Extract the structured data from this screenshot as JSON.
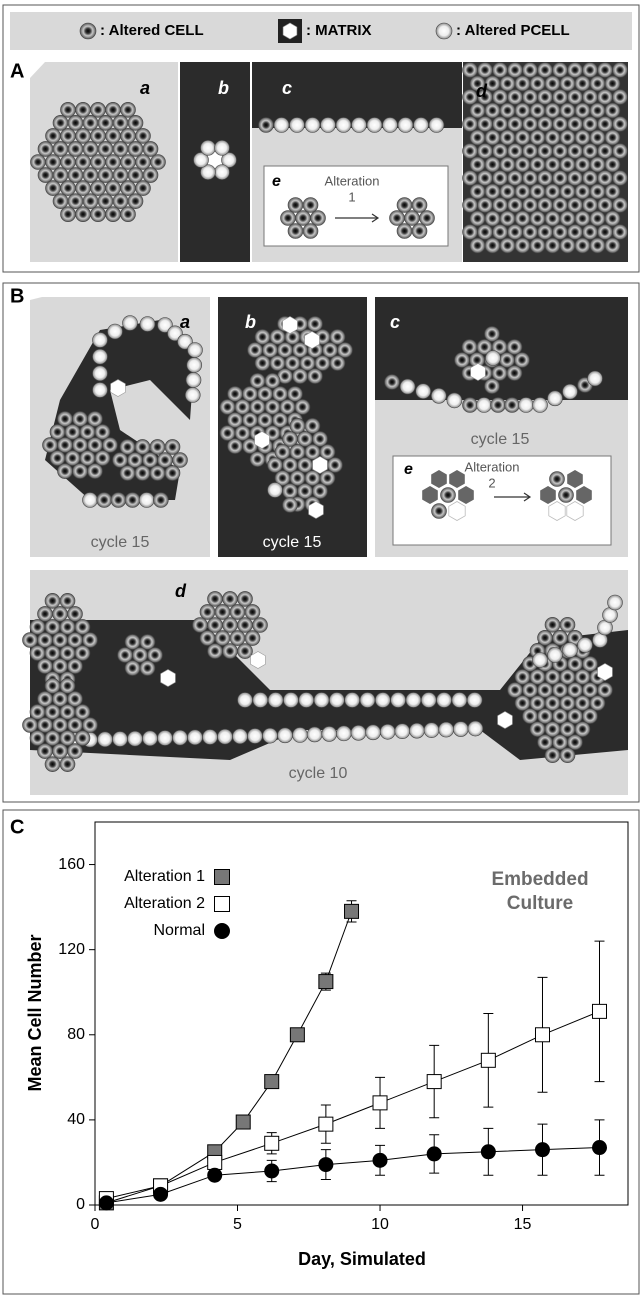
{
  "legend": {
    "cell": ": Altered CELL",
    "matrix": ": MATRIX",
    "pcell": ": Altered PCELL"
  },
  "panel_a": {
    "label": "A",
    "sub": [
      "a",
      "b",
      "c",
      "d"
    ],
    "inset": {
      "label": "e",
      "title": "Alteration",
      "number": "1"
    }
  },
  "panel_b": {
    "label": "B",
    "sub": [
      "a",
      "b",
      "c",
      "d"
    ],
    "captions": [
      "cycle 15",
      "cycle 15",
      "cycle 15",
      "cycle 10"
    ],
    "inset": {
      "label": "e",
      "title": "Alteration",
      "number": "2"
    }
  },
  "panel_c": {
    "label": "C"
  },
  "chart_data": {
    "type": "line",
    "xlabel": "Day, Simulated",
    "ylabel": "Mean Cell Number",
    "annotation": "Embedded Culture",
    "xlim": [
      0,
      18.7
    ],
    "ylim": [
      0,
      180
    ],
    "xticks": [
      0,
      5,
      10,
      15
    ],
    "yticks": [
      0,
      40,
      80,
      120,
      160
    ],
    "series": [
      {
        "name": "Alteration 1",
        "color": "#777777",
        "marker": "square",
        "x": [
          0.4,
          2.3,
          4.2,
          5.2,
          6.2,
          7.1,
          8.1,
          9.0
        ],
        "values": [
          1,
          9,
          25,
          39,
          58,
          80,
          105,
          138
        ],
        "errors": [
          0.5,
          1,
          1.5,
          1.5,
          2,
          2,
          4,
          5
        ]
      },
      {
        "name": "Alteration 2",
        "color": "#ffffff",
        "marker": "square",
        "x": [
          0.4,
          2.3,
          4.2,
          6.2,
          8.1,
          10.0,
          11.9,
          13.8,
          15.7,
          17.7
        ],
        "values": [
          3,
          9,
          20,
          29,
          38,
          48,
          58,
          68,
          80,
          91
        ],
        "errors": [
          1,
          2,
          3,
          5,
          9,
          12,
          17,
          22,
          27,
          33
        ]
      },
      {
        "name": "Normal",
        "color": "#000000",
        "marker": "circle",
        "x": [
          0.4,
          2.3,
          4.2,
          6.2,
          8.1,
          10.0,
          11.9,
          13.8,
          15.7,
          17.7
        ],
        "values": [
          1,
          5,
          14,
          16,
          19,
          21,
          24,
          25,
          26,
          27
        ],
        "errors": [
          0.5,
          1,
          2,
          5,
          7,
          7,
          9,
          11,
          12,
          13
        ]
      }
    ]
  }
}
